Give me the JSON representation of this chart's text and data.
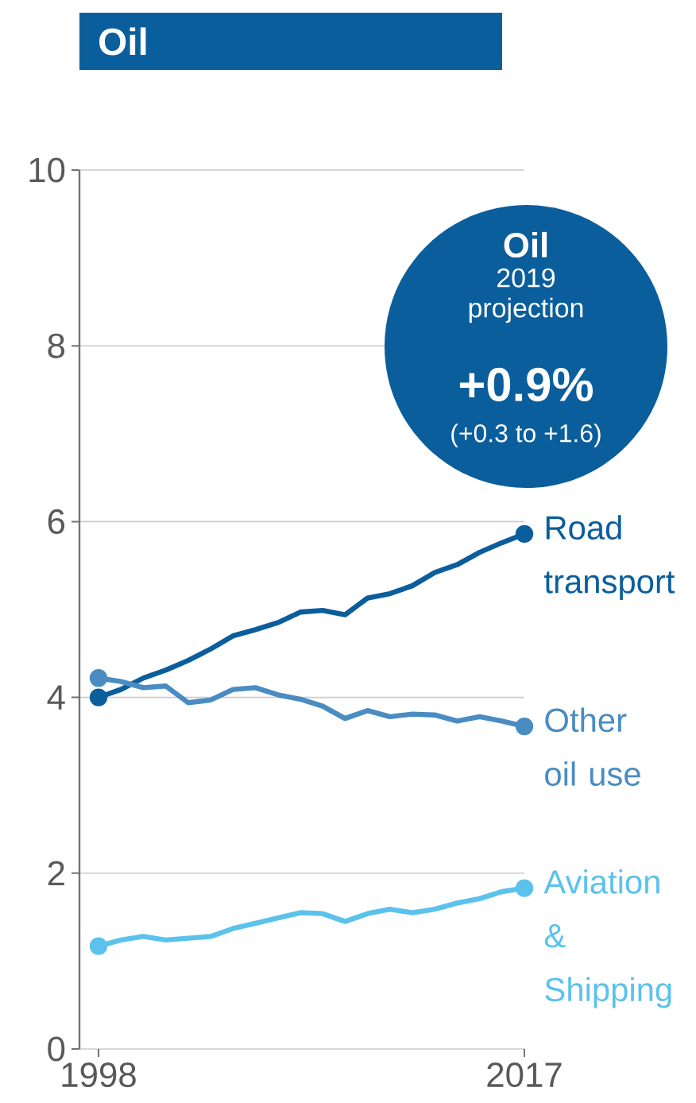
{
  "chart_data": {
    "type": "line",
    "title": "Oil",
    "x": [
      1998,
      1999,
      2000,
      2001,
      2002,
      2003,
      2004,
      2005,
      2006,
      2007,
      2008,
      2009,
      2010,
      2011,
      2012,
      2013,
      2014,
      2015,
      2016,
      2017
    ],
    "series": [
      {
        "name": "Road transport",
        "color": "#0b5e9c",
        "values": [
          4.0,
          4.09,
          4.22,
          4.31,
          4.42,
          4.55,
          4.7,
          4.77,
          4.85,
          4.97,
          4.99,
          4.94,
          5.13,
          5.18,
          5.27,
          5.42,
          5.51,
          5.65,
          5.76,
          5.86
        ]
      },
      {
        "name": "Other oil use",
        "color": "#4a8cc2",
        "values": [
          4.22,
          4.18,
          4.11,
          4.13,
          3.94,
          3.97,
          4.09,
          4.11,
          4.03,
          3.98,
          3.9,
          3.76,
          3.85,
          3.78,
          3.81,
          3.8,
          3.73,
          3.78,
          3.73,
          3.67
        ]
      },
      {
        "name": "Aviation & Shipping",
        "color": "#5bc2ec",
        "values": [
          1.17,
          1.24,
          1.28,
          1.24,
          1.26,
          1.28,
          1.37,
          1.43,
          1.49,
          1.55,
          1.54,
          1.45,
          1.54,
          1.59,
          1.55,
          1.59,
          1.66,
          1.71,
          1.79,
          1.83
        ]
      }
    ],
    "xlim": [
      1997.15,
      2017
    ],
    "xticks": [
      1998,
      2017
    ],
    "ylim": [
      0,
      10
    ],
    "yticks": [
      0,
      2,
      4,
      6,
      8,
      10
    ],
    "grid": "y",
    "line_style": "solid",
    "annotations": [
      "Oil",
      "2019 projection",
      "+0.9%",
      "(+0.3 to +1.6)"
    ]
  }
}
